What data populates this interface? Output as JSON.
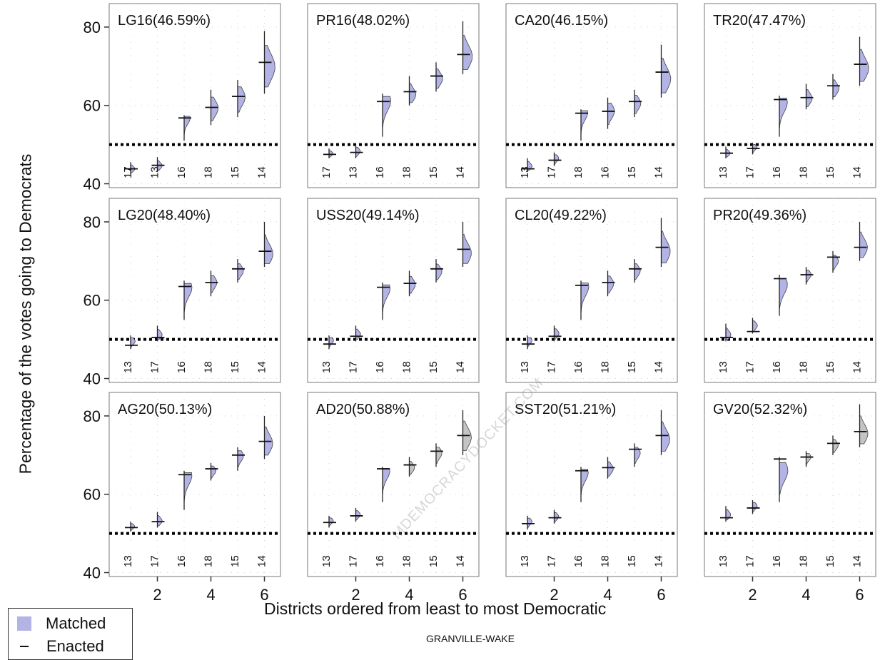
{
  "figure": {
    "ylabel": "Percentage of the votes going to Democrats",
    "xlabel": "Districts ordered from least to most Democratic",
    "caption": "GRANVILLE-WAKE",
    "watermark": "MDEMOCRACYDOCKET.COM",
    "legend": [
      {
        "label": "Matched",
        "kind": "swatch"
      },
      {
        "label": "Enacted",
        "kind": "tick"
      }
    ],
    "colors": {
      "matched": "#b3b3e6",
      "matched_alt": "#c4c4c4",
      "enacted": "#111111",
      "threshold": "#000000",
      "frame": "#777777"
    }
  },
  "chart_data": {
    "type": "box-histogram",
    "ylim": [
      39,
      86
    ],
    "xlim": [
      0.2,
      6.6
    ],
    "yticks": [
      40,
      60,
      80
    ],
    "xticks": [
      2,
      4,
      6
    ],
    "threshold": 50,
    "grid": true,
    "panels": [
      {
        "title": "LG16(46.59%)",
        "districts": [
          "17",
          "13",
          "16",
          "18",
          "15",
          "14"
        ],
        "enacted": [
          43.8,
          44.7,
          56.8,
          59.5,
          62.3,
          71.0
        ],
        "matched": [
          43.8,
          44.6,
          56.8,
          59.3,
          62.1,
          69.8
        ],
        "ranges": [
          [
            42.5,
            45.5
          ],
          [
            43,
            46.8
          ],
          [
            51,
            57.5
          ],
          [
            55,
            64
          ],
          [
            57,
            66.5
          ],
          [
            63,
            79
          ]
        ]
      },
      {
        "title": "PR16(48.02%)",
        "districts": [
          "17",
          "13",
          "16",
          "18",
          "15",
          "14"
        ],
        "enacted": [
          47.5,
          48.0,
          61.0,
          63.5,
          67.5,
          73.0
        ],
        "matched": [
          47.7,
          48.3,
          61.2,
          62.8,
          66.8,
          72.5
        ],
        "ranges": [
          [
            46.5,
            49
          ],
          [
            46.5,
            50
          ],
          [
            52,
            63
          ],
          [
            60,
            67.5
          ],
          [
            63.5,
            71
          ],
          [
            68,
            81.5
          ]
        ]
      },
      {
        "title": "CA20(46.15%)",
        "districts": [
          "13",
          "17",
          "18",
          "16",
          "15",
          "14"
        ],
        "enacted": [
          43.8,
          46.0,
          58.0,
          58.5,
          61.0,
          68.5
        ],
        "matched": [
          44.5,
          46.5,
          58.2,
          58.5,
          60.5,
          66.8
        ],
        "ranges": [
          [
            43,
            46.5
          ],
          [
            44.5,
            48
          ],
          [
            51,
            59
          ],
          [
            54,
            62
          ],
          [
            57,
            64
          ],
          [
            62,
            75.5
          ]
        ]
      },
      {
        "title": "TR20(47.47%)",
        "districts": [
          "13",
          "17",
          "16",
          "18",
          "15",
          "14"
        ],
        "enacted": [
          47.8,
          49.0,
          61.5,
          62.0,
          65.0,
          70.5
        ],
        "matched": [
          47.8,
          49.3,
          60.8,
          61.8,
          64.3,
          69.5
        ],
        "ranges": [
          [
            46.5,
            49.5
          ],
          [
            47.5,
            50.5
          ],
          [
            52,
            62.5
          ],
          [
            59,
            65.5
          ],
          [
            61.5,
            68
          ],
          [
            65,
            77.5
          ]
        ]
      },
      {
        "title": "LG20(48.40%)",
        "districts": [
          "13",
          "17",
          "16",
          "18",
          "15",
          "14"
        ],
        "enacted": [
          48.5,
          50.5,
          63.5,
          64.5,
          68.0,
          72.5
        ],
        "matched": [
          49.5,
          51.2,
          63.2,
          64.5,
          67.5,
          71.8
        ],
        "ranges": [
          [
            47.5,
            51
          ],
          [
            49.5,
            53.5
          ],
          [
            55,
            65
          ],
          [
            61,
            67.5
          ],
          [
            64.5,
            70.5
          ],
          [
            68.5,
            80
          ]
        ]
      },
      {
        "title": "USS20(49.14%)",
        "districts": [
          "13",
          "17",
          "16",
          "18",
          "15",
          "14"
        ],
        "enacted": [
          48.8,
          50.8,
          63.3,
          64.3,
          68.0,
          73.0
        ],
        "matched": [
          49.7,
          51.3,
          63.0,
          64.0,
          67.3,
          72.0
        ],
        "ranges": [
          [
            47.5,
            51
          ],
          [
            49.5,
            53.5
          ],
          [
            55,
            64.5
          ],
          [
            61,
            67.5
          ],
          [
            64.5,
            70.5
          ],
          [
            68.5,
            80
          ]
        ]
      },
      {
        "title": "CL20(49.22%)",
        "districts": [
          "13",
          "17",
          "16",
          "18",
          "15",
          "14"
        ],
        "enacted": [
          48.8,
          50.8,
          63.8,
          64.5,
          68.0,
          73.5
        ],
        "matched": [
          49.7,
          51.5,
          63.5,
          64.2,
          67.5,
          72.5
        ],
        "ranges": [
          [
            47.5,
            51
          ],
          [
            49.5,
            53.5
          ],
          [
            55,
            65
          ],
          [
            61,
            67.5
          ],
          [
            64.5,
            70.5
          ],
          [
            68.5,
            81
          ]
        ]
      },
      {
        "title": "PR20(49.36%)",
        "districts": [
          "13",
          "17",
          "16",
          "18",
          "15",
          "14"
        ],
        "enacted": [
          50.5,
          52.0,
          65.5,
          66.5,
          71.0,
          73.5
        ],
        "matched": [
          51.2,
          53.5,
          64.0,
          66.5,
          70.0,
          73.5
        ],
        "ranges": [
          [
            49.5,
            54
          ],
          [
            51.5,
            55.5
          ],
          [
            56,
            66.5
          ],
          [
            64,
            68.5
          ],
          [
            67,
            72.5
          ],
          [
            70,
            80
          ]
        ]
      },
      {
        "title": "AG20(50.13%)",
        "districts": [
          "13",
          "17",
          "16",
          "18",
          "15",
          "14"
        ],
        "enacted": [
          51.5,
          53.0,
          65.0,
          66.5,
          70.0,
          73.5
        ],
        "matched": [
          51.8,
          53.2,
          64.8,
          66.0,
          69.8,
          73.0
        ],
        "ranges": [
          [
            50.5,
            53
          ],
          [
            51.5,
            55.5
          ],
          [
            56,
            66
          ],
          [
            63.5,
            68
          ],
          [
            66,
            72
          ],
          [
            69,
            80
          ]
        ]
      },
      {
        "title": "AD20(50.88%)",
        "districts": [
          "13",
          "17",
          "16",
          "18",
          "15",
          "14"
        ],
        "enacted": [
          52.8,
          54.5,
          66.5,
          67.5,
          71.0,
          75.0
        ],
        "matched": [
          53.2,
          54.8,
          66.0,
          66.8,
          70.5,
          74.5
        ],
        "ranges": [
          [
            51.5,
            54.5
          ],
          [
            53,
            56.5
          ],
          [
            58,
            67
          ],
          [
            64.5,
            69.5
          ],
          [
            67,
            73
          ],
          [
            70,
            81.5
          ]
        ]
      },
      {
        "title": "SST20(51.21%)",
        "districts": [
          "13",
          "17",
          "16",
          "18",
          "15",
          "14"
        ],
        "enacted": [
          52.5,
          54.0,
          66.0,
          66.8,
          71.5,
          75.0
        ],
        "matched": [
          53.0,
          54.3,
          65.5,
          66.5,
          70.5,
          74.0
        ],
        "ranges": [
          [
            51,
            54.5
          ],
          [
            52.5,
            56
          ],
          [
            58,
            67
          ],
          [
            64,
            69.5
          ],
          [
            67,
            73
          ],
          [
            70,
            81.5
          ]
        ]
      },
      {
        "title": "GV20(52.32%)",
        "districts": [
          "13",
          "17",
          "16",
          "18",
          "15",
          "14"
        ],
        "enacted": [
          54.0,
          56.5,
          69.0,
          69.5,
          73.0,
          76.0
        ],
        "matched": [
          54.8,
          57.0,
          66.0,
          69.5,
          72.5,
          75.5
        ],
        "ranges": [
          [
            53,
            57
          ],
          [
            55,
            58.5
          ],
          [
            58,
            69.5
          ],
          [
            67,
            71
          ],
          [
            70,
            75
          ],
          [
            72,
            83
          ]
        ]
      }
    ]
  }
}
